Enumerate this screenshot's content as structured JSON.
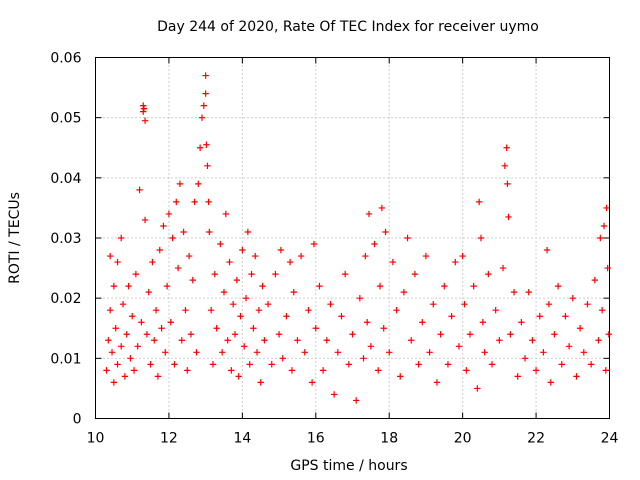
{
  "chart_data": {
    "type": "scatter",
    "title": "Day 244 of 2020, Rate Of TEC Index for receiver uymo",
    "xlabel": "GPS time / hours",
    "ylabel": "ROTI / TECUs",
    "xlim": [
      10,
      24
    ],
    "ylim": [
      0,
      0.06
    ],
    "x_ticks": [
      10,
      12,
      14,
      16,
      18,
      20,
      22,
      24
    ],
    "x_tick_labels": [
      "10",
      "12",
      "14",
      "16",
      "18",
      "20",
      "22",
      "24"
    ],
    "y_ticks": [
      0,
      0.01,
      0.02,
      0.03,
      0.04,
      0.05,
      0.06
    ],
    "y_tick_labels": [
      "0",
      "0.01",
      "0.02",
      "0.03",
      "0.04",
      "0.05",
      "0.06"
    ],
    "grid": true,
    "marker": "+",
    "color": "#ff0000",
    "series": [
      {
        "name": "ROTI",
        "points": [
          [
            10.3,
            0.008
          ],
          [
            10.35,
            0.013
          ],
          [
            10.4,
            0.018
          ],
          [
            10.4,
            0.027
          ],
          [
            10.45,
            0.011
          ],
          [
            10.5,
            0.022
          ],
          [
            10.5,
            0.006
          ],
          [
            10.55,
            0.015
          ],
          [
            10.6,
            0.026
          ],
          [
            10.6,
            0.009
          ],
          [
            10.7,
            0.012
          ],
          [
            10.7,
            0.03
          ],
          [
            10.75,
            0.019
          ],
          [
            10.8,
            0.007
          ],
          [
            10.85,
            0.014
          ],
          [
            10.9,
            0.022
          ],
          [
            10.95,
            0.01
          ],
          [
            11.0,
            0.017
          ],
          [
            11.05,
            0.008
          ],
          [
            11.1,
            0.024
          ],
          [
            11.15,
            0.012
          ],
          [
            11.2,
            0.038
          ],
          [
            11.25,
            0.016
          ],
          [
            11.3,
            0.051
          ],
          [
            11.3,
            0.052
          ],
          [
            11.32,
            0.0515
          ],
          [
            11.35,
            0.0495
          ],
          [
            11.35,
            0.033
          ],
          [
            11.4,
            0.014
          ],
          [
            11.45,
            0.021
          ],
          [
            11.5,
            0.009
          ],
          [
            11.55,
            0.026
          ],
          [
            11.6,
            0.013
          ],
          [
            11.65,
            0.018
          ],
          [
            11.7,
            0.007
          ],
          [
            11.75,
            0.028
          ],
          [
            11.8,
            0.015
          ],
          [
            11.85,
            0.032
          ],
          [
            11.9,
            0.011
          ],
          [
            11.95,
            0.022
          ],
          [
            12.0,
            0.034
          ],
          [
            12.05,
            0.016
          ],
          [
            12.1,
            0.03
          ],
          [
            12.15,
            0.009
          ],
          [
            12.2,
            0.036
          ],
          [
            12.25,
            0.025
          ],
          [
            12.3,
            0.039
          ],
          [
            12.35,
            0.013
          ],
          [
            12.4,
            0.031
          ],
          [
            12.45,
            0.018
          ],
          [
            12.5,
            0.008
          ],
          [
            12.55,
            0.027
          ],
          [
            12.6,
            0.014
          ],
          [
            12.65,
            0.023
          ],
          [
            12.7,
            0.036
          ],
          [
            12.75,
            0.011
          ],
          [
            12.8,
            0.039
          ],
          [
            12.85,
            0.045
          ],
          [
            12.9,
            0.05
          ],
          [
            12.95,
            0.052
          ],
          [
            13.0,
            0.057
          ],
          [
            13.0,
            0.054
          ],
          [
            13.02,
            0.0455
          ],
          [
            13.05,
            0.042
          ],
          [
            13.08,
            0.036
          ],
          [
            13.1,
            0.031
          ],
          [
            13.15,
            0.018
          ],
          [
            13.2,
            0.009
          ],
          [
            13.25,
            0.024
          ],
          [
            13.3,
            0.015
          ],
          [
            13.4,
            0.029
          ],
          [
            13.45,
            0.011
          ],
          [
            13.5,
            0.021
          ],
          [
            13.55,
            0.034
          ],
          [
            13.6,
            0.013
          ],
          [
            13.65,
            0.026
          ],
          [
            13.7,
            0.008
          ],
          [
            13.75,
            0.019
          ],
          [
            13.8,
            0.014
          ],
          [
            13.85,
            0.023
          ],
          [
            13.9,
            0.007
          ],
          [
            13.95,
            0.017
          ],
          [
            14.0,
            0.028
          ],
          [
            14.05,
            0.012
          ],
          [
            14.1,
            0.02
          ],
          [
            14.15,
            0.031
          ],
          [
            14.2,
            0.009
          ],
          [
            14.25,
            0.024
          ],
          [
            14.3,
            0.015
          ],
          [
            14.35,
            0.027
          ],
          [
            14.4,
            0.011
          ],
          [
            14.45,
            0.018
          ],
          [
            14.5,
            0.006
          ],
          [
            14.55,
            0.022
          ],
          [
            14.6,
            0.013
          ],
          [
            14.7,
            0.019
          ],
          [
            14.8,
            0.009
          ],
          [
            14.9,
            0.024
          ],
          [
            15.0,
            0.014
          ],
          [
            15.05,
            0.028
          ],
          [
            15.1,
            0.01
          ],
          [
            15.2,
            0.017
          ],
          [
            15.3,
            0.026
          ],
          [
            15.35,
            0.008
          ],
          [
            15.4,
            0.021
          ],
          [
            15.5,
            0.013
          ],
          [
            15.6,
            0.027
          ],
          [
            15.7,
            0.011
          ],
          [
            15.8,
            0.018
          ],
          [
            15.9,
            0.006
          ],
          [
            15.95,
            0.029
          ],
          [
            16.0,
            0.015
          ],
          [
            16.1,
            0.022
          ],
          [
            16.2,
            0.008
          ],
          [
            16.3,
            0.013
          ],
          [
            16.4,
            0.019
          ],
          [
            16.5,
            0.004
          ],
          [
            16.6,
            0.011
          ],
          [
            16.7,
            0.017
          ],
          [
            16.8,
            0.024
          ],
          [
            16.9,
            0.009
          ],
          [
            17.0,
            0.014
          ],
          [
            17.1,
            0.003
          ],
          [
            17.2,
            0.02
          ],
          [
            17.3,
            0.01
          ],
          [
            17.35,
            0.027
          ],
          [
            17.4,
            0.016
          ],
          [
            17.45,
            0.034
          ],
          [
            17.5,
            0.012
          ],
          [
            17.6,
            0.029
          ],
          [
            17.7,
            0.008
          ],
          [
            17.75,
            0.022
          ],
          [
            17.8,
            0.035
          ],
          [
            17.85,
            0.015
          ],
          [
            17.9,
            0.031
          ],
          [
            18.0,
            0.011
          ],
          [
            18.1,
            0.026
          ],
          [
            18.2,
            0.018
          ],
          [
            18.3,
            0.007
          ],
          [
            18.4,
            0.021
          ],
          [
            18.5,
            0.03
          ],
          [
            18.6,
            0.013
          ],
          [
            18.7,
            0.024
          ],
          [
            18.8,
            0.009
          ],
          [
            18.9,
            0.016
          ],
          [
            19.0,
            0.027
          ],
          [
            19.1,
            0.011
          ],
          [
            19.2,
            0.019
          ],
          [
            19.3,
            0.006
          ],
          [
            19.4,
            0.014
          ],
          [
            19.5,
            0.022
          ],
          [
            19.6,
            0.009
          ],
          [
            19.7,
            0.017
          ],
          [
            19.8,
            0.026
          ],
          [
            19.9,
            0.012
          ],
          [
            20.0,
            0.027
          ],
          [
            20.05,
            0.019
          ],
          [
            20.1,
            0.008
          ],
          [
            20.2,
            0.014
          ],
          [
            20.3,
            0.022
          ],
          [
            20.4,
            0.005
          ],
          [
            20.45,
            0.036
          ],
          [
            20.5,
            0.03
          ],
          [
            20.55,
            0.016
          ],
          [
            20.6,
            0.011
          ],
          [
            20.7,
            0.024
          ],
          [
            20.8,
            0.009
          ],
          [
            20.9,
            0.018
          ],
          [
            21.0,
            0.013
          ],
          [
            21.1,
            0.025
          ],
          [
            21.15,
            0.042
          ],
          [
            21.2,
            0.045
          ],
          [
            21.22,
            0.039
          ],
          [
            21.25,
            0.0335
          ],
          [
            21.3,
            0.014
          ],
          [
            21.4,
            0.021
          ],
          [
            21.5,
            0.007
          ],
          [
            21.6,
            0.016
          ],
          [
            21.7,
            0.01
          ],
          [
            21.8,
            0.021
          ],
          [
            21.9,
            0.013
          ],
          [
            22.0,
            0.008
          ],
          [
            22.1,
            0.017
          ],
          [
            22.2,
            0.011
          ],
          [
            22.3,
            0.028
          ],
          [
            22.35,
            0.019
          ],
          [
            22.4,
            0.006
          ],
          [
            22.5,
            0.014
          ],
          [
            22.6,
            0.022
          ],
          [
            22.7,
            0.009
          ],
          [
            22.8,
            0.017
          ],
          [
            22.9,
            0.012
          ],
          [
            23.0,
            0.02
          ],
          [
            23.1,
            0.007
          ],
          [
            23.2,
            0.015
          ],
          [
            23.3,
            0.011
          ],
          [
            23.4,
            0.019
          ],
          [
            23.5,
            0.009
          ],
          [
            23.6,
            0.023
          ],
          [
            23.7,
            0.013
          ],
          [
            23.75,
            0.03
          ],
          [
            23.8,
            0.018
          ],
          [
            23.85,
            0.032
          ],
          [
            23.9,
            0.008
          ],
          [
            23.92,
            0.035
          ],
          [
            23.95,
            0.025
          ],
          [
            23.98,
            0.014
          ]
        ]
      }
    ]
  }
}
